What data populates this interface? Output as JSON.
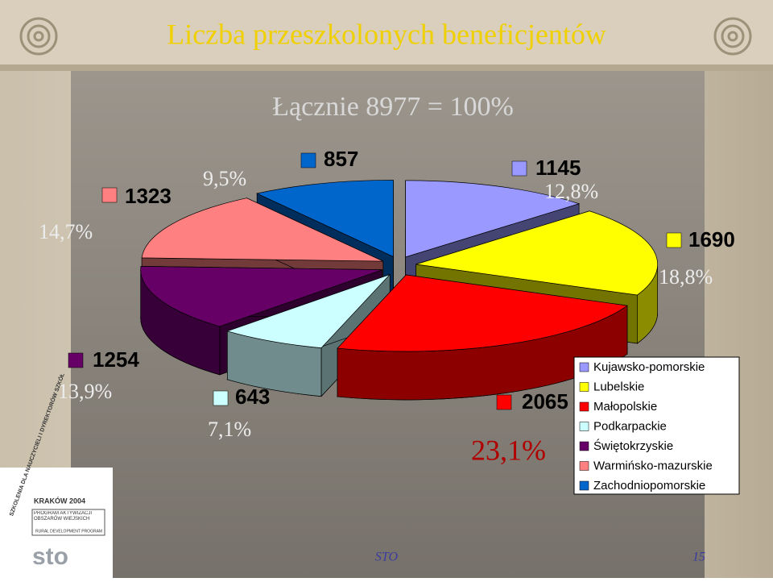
{
  "chart_data": {
    "type": "pie",
    "title": "Liczba przeszkolonych beneficjentów",
    "subtitle": "Łącznie 8977 = 100%",
    "categories": [
      "Kujawsko-pomorskie",
      "Lubelskie",
      "Małopolskie",
      "Podkarpackie",
      "Świętokrzyskie",
      "Warmińsko-mazurskie",
      "Zachodniopomorskie"
    ],
    "values": [
      1145,
      1690,
      2065,
      643,
      1254,
      1323,
      857
    ],
    "percents": [
      12.8,
      18.8,
      23.1,
      7.1,
      13.9,
      14.7,
      9.5
    ],
    "percent_labels": [
      "12,8%",
      "18,8%",
      "23,1%",
      "7,1%",
      "13,9%",
      "14,7%",
      "9,5%"
    ],
    "colors": [
      "#9999ff",
      "#ffff00",
      "#ff0000",
      "#ccffff",
      "#660066",
      "#ff8080",
      "#0066cc"
    ],
    "legend": "right"
  },
  "logo": {
    "top": "SZKOLENIA DLA NAUCZYCIELI I DYREKTORÓW SZKÓŁ",
    "event": "KRAKÓW 2004",
    "program": "PROGRAM AKTYWIZACJI OBSZARÓW WIEJSKICH",
    "program_en": "RURAL DEVELOPMENT PROGRAM",
    "brand": "sto"
  },
  "footer": {
    "left": "STO",
    "page": "15"
  }
}
